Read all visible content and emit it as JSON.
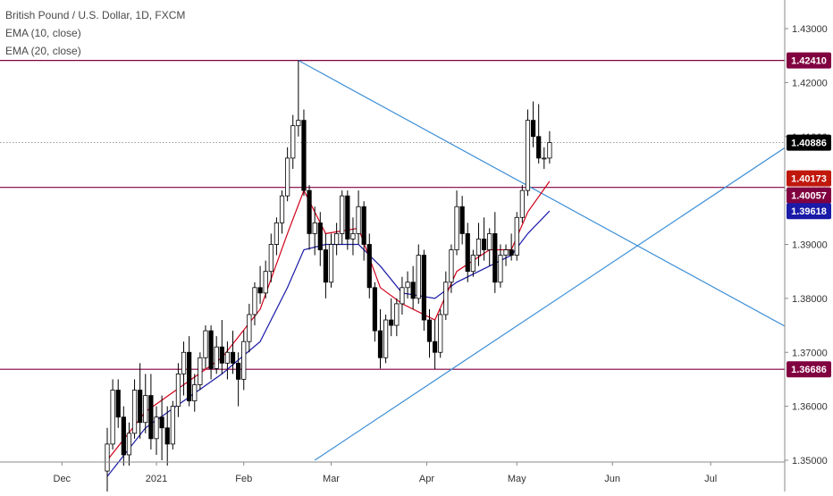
{
  "chart_data": {
    "type": "candlestick",
    "title": "British Pound / U.S. Dollar, 1D, FXCM",
    "indicators": [
      "EMA (10, close)",
      "EMA (20, close)"
    ],
    "colors": {
      "up_body": "#ffffff",
      "down_body": "#000000",
      "candle_outline": "#000000",
      "ema10": "#d0021b",
      "ema20": "#1a1aa8",
      "trendlines": "#3d8fd6",
      "horizontal_levels": "#800040",
      "current_price": "#7f7f7f",
      "axis_text": "#333333"
    },
    "y_axis": {
      "range": [
        1.35,
        1.4365
      ],
      "ticks": [
        "1.43000",
        "1.42000",
        "1.41000",
        "1.40000",
        "1.39000",
        "1.38000",
        "1.37000",
        "1.36000",
        "1.35000"
      ]
    },
    "x_axis": {
      "labels": [
        "Dec",
        "2021",
        "Feb",
        "Mar",
        "Apr",
        "May",
        "Jun",
        "Jul"
      ]
    },
    "price_labels": [
      {
        "text": "1.42410",
        "value": 1.4241,
        "bg": "#800040",
        "fg": "#ffffff"
      },
      {
        "text": "1.40886",
        "value": 1.40886,
        "bg": "#000000",
        "fg": "#ffffff"
      },
      {
        "text": "1.40173",
        "value": 1.40173,
        "bg": "#c0180c",
        "fg": "#ffffff"
      },
      {
        "text": "1.40057",
        "value": 1.40057,
        "bg": "#800040",
        "fg": "#ffffff"
      },
      {
        "text": "1.39618",
        "value": 1.39618,
        "bg": "#1a1aa8",
        "fg": "#ffffff"
      },
      {
        "text": "1.36686",
        "value": 1.36686,
        "bg": "#800040",
        "fg": "#ffffff"
      }
    ],
    "horizontal_levels": [
      1.4241,
      1.40057,
      1.36686
    ],
    "current_price": 1.40886,
    "ohlc": [
      [
        1.348,
        1.356,
        1.341,
        1.353
      ],
      [
        1.353,
        1.365,
        1.352,
        1.363
      ],
      [
        1.363,
        1.365,
        1.356,
        1.358
      ],
      [
        1.358,
        1.36,
        1.349,
        1.351
      ],
      [
        1.351,
        1.357,
        1.349,
        1.355
      ],
      [
        1.355,
        1.365,
        1.354,
        1.363
      ],
      [
        1.363,
        1.368,
        1.354,
        1.357
      ],
      [
        1.357,
        1.366,
        1.355,
        1.362
      ],
      [
        1.362,
        1.366,
        1.352,
        1.354
      ],
      [
        1.354,
        1.36,
        1.351,
        1.358
      ],
      [
        1.358,
        1.362,
        1.35,
        1.356
      ],
      [
        1.356,
        1.36,
        1.349,
        1.353
      ],
      [
        1.353,
        1.361,
        1.352,
        1.36
      ],
      [
        1.36,
        1.368,
        1.358,
        1.366
      ],
      [
        1.366,
        1.372,
        1.362,
        1.37
      ],
      [
        1.37,
        1.373,
        1.36,
        1.361
      ],
      [
        1.361,
        1.366,
        1.359,
        1.364
      ],
      [
        1.364,
        1.37,
        1.363,
        1.369
      ],
      [
        1.369,
        1.375,
        1.367,
        1.374
      ],
      [
        1.374,
        1.375,
        1.365,
        1.367
      ],
      [
        1.367,
        1.373,
        1.366,
        1.371
      ],
      [
        1.371,
        1.376,
        1.366,
        1.368
      ],
      [
        1.368,
        1.372,
        1.365,
        1.37
      ],
      [
        1.37,
        1.374,
        1.366,
        1.368
      ],
      [
        1.368,
        1.37,
        1.36,
        1.365
      ],
      [
        1.365,
        1.374,
        1.363,
        1.372
      ],
      [
        1.372,
        1.379,
        1.37,
        1.377
      ],
      [
        1.377,
        1.383,
        1.375,
        1.382
      ],
      [
        1.382,
        1.386,
        1.379,
        1.381
      ],
      [
        1.381,
        1.387,
        1.38,
        1.385
      ],
      [
        1.385,
        1.392,
        1.383,
        1.39
      ],
      [
        1.39,
        1.395,
        1.388,
        1.394
      ],
      [
        1.394,
        1.4,
        1.392,
        1.399
      ],
      [
        1.399,
        1.408,
        1.398,
        1.406
      ],
      [
        1.406,
        1.414,
        1.404,
        1.412
      ],
      [
        1.412,
        1.4241,
        1.41,
        1.413
      ],
      [
        1.413,
        1.415,
        1.399,
        1.4
      ],
      [
        1.4,
        1.401,
        1.389,
        1.392
      ],
      [
        1.392,
        1.397,
        1.388,
        1.394
      ],
      [
        1.394,
        1.396,
        1.386,
        1.389
      ],
      [
        1.389,
        1.392,
        1.38,
        1.383
      ],
      [
        1.383,
        1.392,
        1.382,
        1.39
      ],
      [
        1.39,
        1.394,
        1.388,
        1.392
      ],
      [
        1.392,
        1.4,
        1.39,
        1.399
      ],
      [
        1.399,
        1.4,
        1.389,
        1.391
      ],
      [
        1.391,
        1.395,
        1.388,
        1.392
      ],
      [
        1.392,
        1.4,
        1.39,
        1.397
      ],
      [
        1.397,
        1.398,
        1.387,
        1.39
      ],
      [
        1.39,
        1.392,
        1.38,
        1.382
      ],
      [
        1.382,
        1.383,
        1.372,
        1.374
      ],
      [
        1.374,
        1.378,
        1.367,
        1.369
      ],
      [
        1.369,
        1.377,
        1.368,
        1.376
      ],
      [
        1.376,
        1.38,
        1.373,
        1.375
      ],
      [
        1.375,
        1.38,
        1.373,
        1.379
      ],
      [
        1.379,
        1.384,
        1.377,
        1.382
      ],
      [
        1.382,
        1.385,
        1.38,
        1.383
      ],
      [
        1.383,
        1.386,
        1.378,
        1.38
      ],
      [
        1.38,
        1.39,
        1.379,
        1.388
      ],
      [
        1.388,
        1.389,
        1.374,
        1.376
      ],
      [
        1.376,
        1.378,
        1.369,
        1.372
      ],
      [
        1.372,
        1.376,
        1.3669,
        1.37
      ],
      [
        1.37,
        1.378,
        1.369,
        1.377
      ],
      [
        1.377,
        1.385,
        1.376,
        1.383
      ],
      [
        1.383,
        1.39,
        1.381,
        1.389
      ],
      [
        1.389,
        1.4,
        1.388,
        1.397
      ],
      [
        1.397,
        1.399,
        1.39,
        1.392
      ],
      [
        1.392,
        1.394,
        1.383,
        1.385
      ],
      [
        1.385,
        1.389,
        1.384,
        1.388
      ],
      [
        1.388,
        1.394,
        1.386,
        1.391
      ],
      [
        1.391,
        1.395,
        1.387,
        1.389
      ],
      [
        1.389,
        1.393,
        1.386,
        1.392
      ],
      [
        1.392,
        1.396,
        1.381,
        1.383
      ],
      [
        1.383,
        1.39,
        1.382,
        1.388
      ],
      [
        1.388,
        1.39,
        1.386,
        1.389
      ],
      [
        1.389,
        1.392,
        1.387,
        1.388
      ],
      [
        1.388,
        1.396,
        1.387,
        1.395
      ],
      [
        1.395,
        1.401,
        1.394,
        1.4
      ],
      [
        1.4,
        1.415,
        1.399,
        1.413
      ],
      [
        1.413,
        1.4165,
        1.408,
        1.41
      ],
      [
        1.41,
        1.416,
        1.405,
        1.406
      ],
      [
        1.406,
        1.408,
        1.404,
        1.406
      ],
      [
        1.406,
        1.411,
        1.405,
        1.4089
      ]
    ],
    "ema10": [
      [
        0,
        1.35
      ],
      [
        7,
        1.359
      ],
      [
        14,
        1.364
      ],
      [
        21,
        1.369
      ],
      [
        28,
        1.378
      ],
      [
        33,
        1.392
      ],
      [
        36,
        1.4
      ],
      [
        40,
        1.392
      ],
      [
        46,
        1.393
      ],
      [
        50,
        1.382
      ],
      [
        54,
        1.379
      ],
      [
        60,
        1.376
      ],
      [
        64,
        1.385
      ],
      [
        70,
        1.389
      ],
      [
        74,
        1.389
      ],
      [
        77,
        1.396
      ],
      [
        81,
        1.4017
      ]
    ],
    "ema20": [
      [
        0,
        1.347
      ],
      [
        7,
        1.356
      ],
      [
        14,
        1.361
      ],
      [
        21,
        1.366
      ],
      [
        28,
        1.372
      ],
      [
        33,
        1.382
      ],
      [
        36,
        1.389
      ],
      [
        40,
        1.39
      ],
      [
        46,
        1.39
      ],
      [
        50,
        1.386
      ],
      [
        54,
        1.381
      ],
      [
        60,
        1.38
      ],
      [
        64,
        1.383
      ],
      [
        70,
        1.386
      ],
      [
        74,
        1.388
      ],
      [
        77,
        1.392
      ],
      [
        81,
        1.3962
      ]
    ],
    "trendlines": [
      {
        "from": [
          35,
          1.4241
        ],
        "to": [
          150,
          1.3605
        ]
      },
      {
        "from": [
          38,
          1.35
        ],
        "to": [
          145,
          1.422
        ]
      }
    ]
  }
}
